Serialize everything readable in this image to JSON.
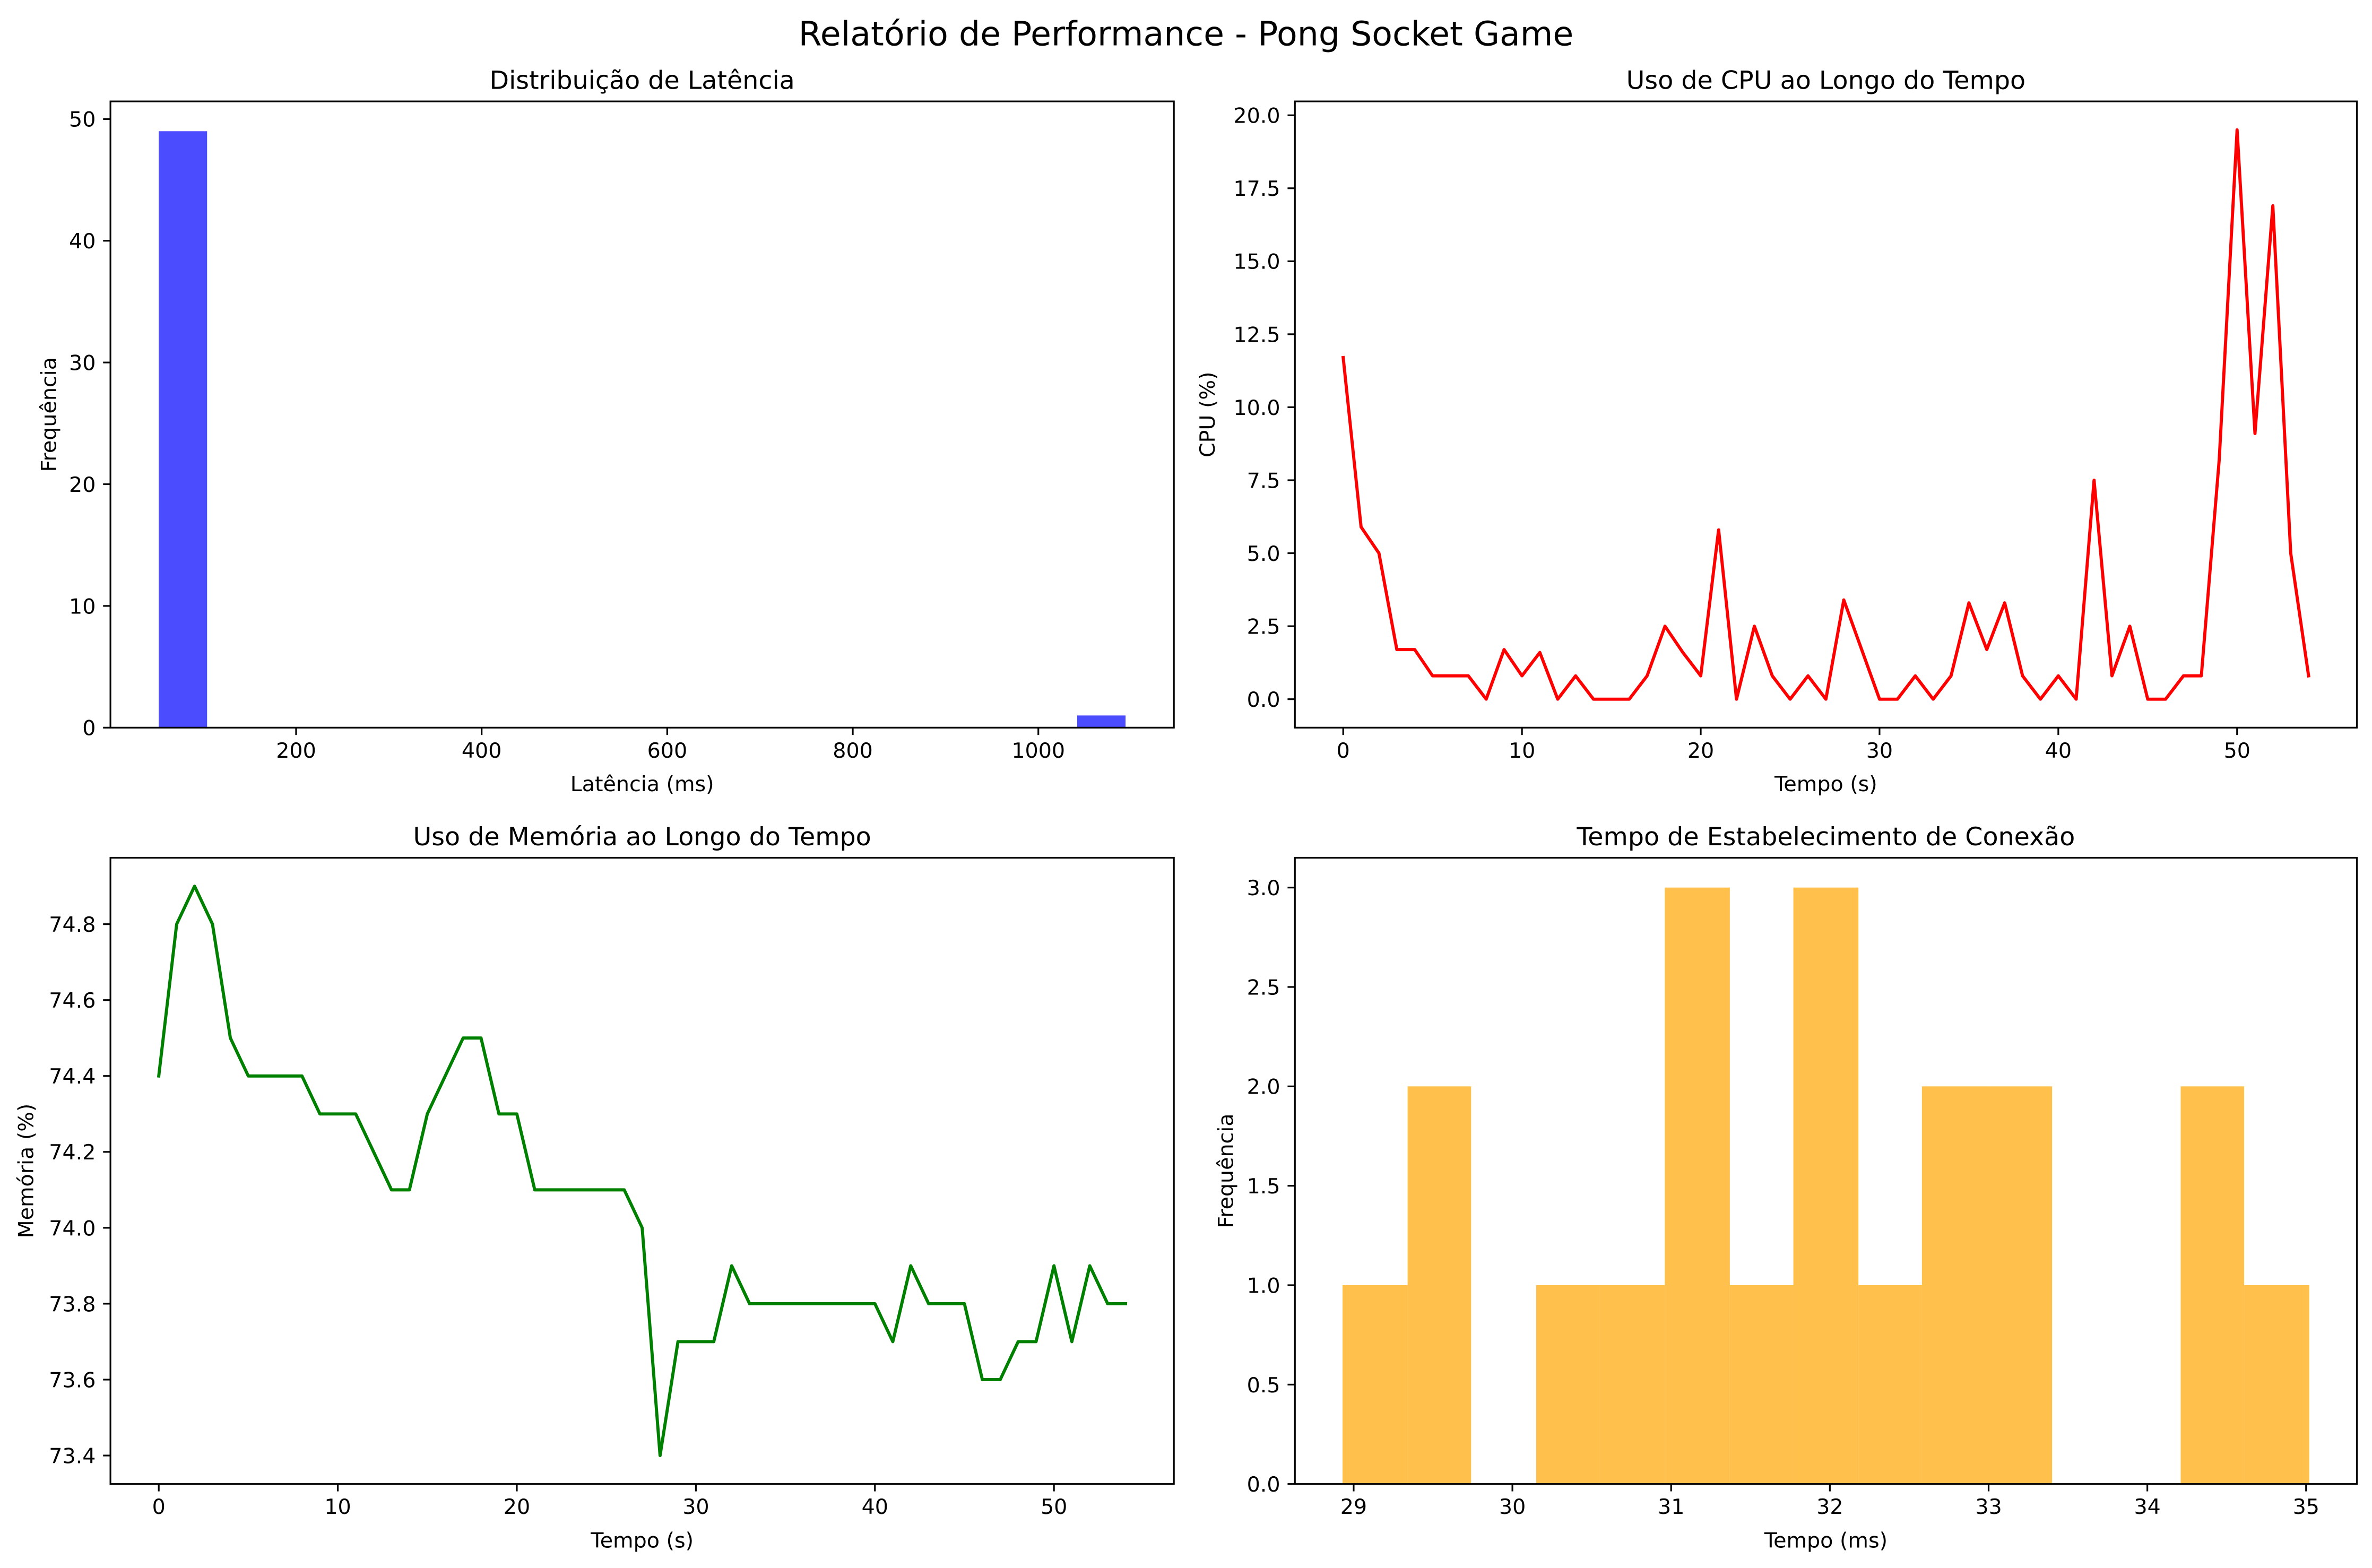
{
  "figure": {
    "title": "Relatório de Performance - Pong Socket Game",
    "background": "#ffffff"
  },
  "chart_data": [
    {
      "type": "bar",
      "histogram": true,
      "title": "Distribuição de Latência",
      "xlabel": "Latência (ms)",
      "ylabel": "Frequência",
      "bin_edges": [
        52.0,
        104.1,
        156.2,
        208.3,
        260.4,
        312.5,
        364.6,
        416.7,
        468.8,
        520.9,
        573.0,
        625.1,
        677.2,
        729.3,
        781.4,
        833.5,
        885.6,
        937.7,
        989.8,
        1041.9,
        1094.0
      ],
      "counts": [
        49,
        0,
        0,
        0,
        0,
        0,
        0,
        0,
        0,
        0,
        0,
        0,
        0,
        0,
        0,
        0,
        0,
        0,
        0,
        1
      ],
      "xlim": [
        -0.1,
        1146.1
      ],
      "ylim": [
        0,
        51.45
      ],
      "xticks": [
        200,
        400,
        600,
        800,
        1000
      ],
      "xtick_labels": [
        "200",
        "400",
        "600",
        "800",
        "1000"
      ],
      "yticks": [
        0,
        10,
        20,
        30,
        40,
        50
      ],
      "ytick_labels": [
        "0",
        "10",
        "20",
        "30",
        "40",
        "50"
      ],
      "color": "#0000ff",
      "alpha": 0.7,
      "grid": false
    },
    {
      "type": "line",
      "title": "Uso de CPU ao Longo do Tempo",
      "xlabel": "Tempo (s)",
      "ylabel": "CPU (%)",
      "x": [
        0,
        1,
        2,
        3,
        4,
        5,
        6,
        7,
        8,
        9,
        10,
        11,
        12,
        13,
        14,
        15,
        16,
        17,
        18,
        19,
        20,
        21,
        22,
        23,
        24,
        25,
        26,
        27,
        28,
        29,
        30,
        31,
        32,
        33,
        34,
        35,
        36,
        37,
        38,
        39,
        40,
        41,
        42,
        43,
        44,
        45,
        46,
        47,
        48,
        49,
        50,
        51,
        52,
        53,
        54
      ],
      "y": [
        11.7,
        5.9,
        5.0,
        1.7,
        1.7,
        0.8,
        0.8,
        0.8,
        0.0,
        1.7,
        0.8,
        1.6,
        0.0,
        0.8,
        0.0,
        0.0,
        0.0,
        0.8,
        2.5,
        1.6,
        0.8,
        5.8,
        0.0,
        2.5,
        0.8,
        0.0,
        0.8,
        0.0,
        3.4,
        1.7,
        0.0,
        0.0,
        0.8,
        0.0,
        0.8,
        3.3,
        1.7,
        3.3,
        0.8,
        0.0,
        0.8,
        0.0,
        7.5,
        0.8,
        2.5,
        0.0,
        0.0,
        0.8,
        0.8,
        8.2,
        19.5,
        9.1,
        16.9,
        5.0,
        0.8
      ],
      "xlim": [
        -2.7,
        56.7
      ],
      "ylim": [
        -0.975,
        20.475
      ],
      "xticks": [
        0,
        10,
        20,
        30,
        40,
        50
      ],
      "xtick_labels": [
        "0",
        "10",
        "20",
        "30",
        "40",
        "50"
      ],
      "yticks": [
        0,
        2.5,
        5,
        7.5,
        10,
        12.5,
        15,
        17.5,
        20
      ],
      "ytick_labels": [
        "0.0",
        "2.5",
        "5.0",
        "7.5",
        "10.0",
        "12.5",
        "15.0",
        "17.5",
        "20.0"
      ],
      "color": "#ff0000",
      "grid": false
    },
    {
      "type": "line",
      "title": "Uso de Memória ao Longo do Tempo",
      "xlabel": "Tempo (s)",
      "ylabel": "Memória (%)",
      "x": [
        0,
        1,
        2,
        3,
        4,
        5,
        6,
        7,
        8,
        9,
        10,
        11,
        12,
        13,
        14,
        15,
        16,
        17,
        18,
        19,
        20,
        21,
        22,
        23,
        24,
        25,
        26,
        27,
        28,
        29,
        30,
        31,
        32,
        33,
        34,
        35,
        36,
        37,
        38,
        39,
        40,
        41,
        42,
        43,
        44,
        45,
        46,
        47,
        48,
        49,
        50,
        51,
        52,
        53,
        54
      ],
      "y": [
        74.4,
        74.8,
        74.9,
        74.8,
        74.5,
        74.4,
        74.4,
        74.4,
        74.4,
        74.3,
        74.3,
        74.3,
        74.2,
        74.1,
        74.1,
        74.3,
        74.4,
        74.5,
        74.5,
        74.3,
        74.3,
        74.1,
        74.1,
        74.1,
        74.1,
        74.1,
        74.1,
        74.0,
        73.4,
        73.7,
        73.7,
        73.7,
        73.9,
        73.8,
        73.8,
        73.8,
        73.8,
        73.8,
        73.8,
        73.8,
        73.8,
        73.7,
        73.9,
        73.8,
        73.8,
        73.8,
        73.6,
        73.6,
        73.7,
        73.7,
        73.9,
        73.7,
        73.9,
        73.8,
        73.8
      ],
      "xlim": [
        -2.7,
        56.7
      ],
      "ylim": [
        73.325,
        74.975
      ],
      "xticks": [
        0,
        10,
        20,
        30,
        40,
        50
      ],
      "xtick_labels": [
        "0",
        "10",
        "20",
        "30",
        "40",
        "50"
      ],
      "yticks": [
        73.4,
        73.6,
        73.8,
        74.0,
        74.2,
        74.4,
        74.6,
        74.8
      ],
      "ytick_labels": [
        "73.4",
        "73.6",
        "73.8",
        "74.0",
        "74.2",
        "74.4",
        "74.6",
        "74.8"
      ],
      "color": "#008000",
      "grid": false
    },
    {
      "type": "bar",
      "histogram": true,
      "title": "Tempo de Estabelecimento de Conexão",
      "xlabel": "Tempo (ms)",
      "ylabel": "Frequência",
      "bin_edges": [
        28.93,
        29.34,
        29.74,
        30.15,
        30.55,
        30.96,
        31.37,
        31.77,
        32.18,
        32.58,
        32.99,
        33.4,
        33.8,
        34.21,
        34.61,
        35.02
      ],
      "counts": [
        1,
        2,
        0,
        1,
        1,
        3,
        1,
        3,
        1,
        2,
        2,
        0,
        0,
        2,
        1
      ],
      "xlim": [
        28.63,
        35.32
      ],
      "ylim": [
        0,
        3.15
      ],
      "xticks": [
        29,
        30,
        31,
        32,
        33,
        34,
        35
      ],
      "xtick_labels": [
        "29",
        "30",
        "31",
        "32",
        "33",
        "34",
        "35"
      ],
      "yticks": [
        0,
        0.5,
        1,
        1.5,
        2,
        2.5,
        3
      ],
      "ytick_labels": [
        "0.0",
        "0.5",
        "1.0",
        "1.5",
        "2.0",
        "2.5",
        "3.0"
      ],
      "color": "#ffa500",
      "alpha": 0.7,
      "grid": false
    }
  ]
}
